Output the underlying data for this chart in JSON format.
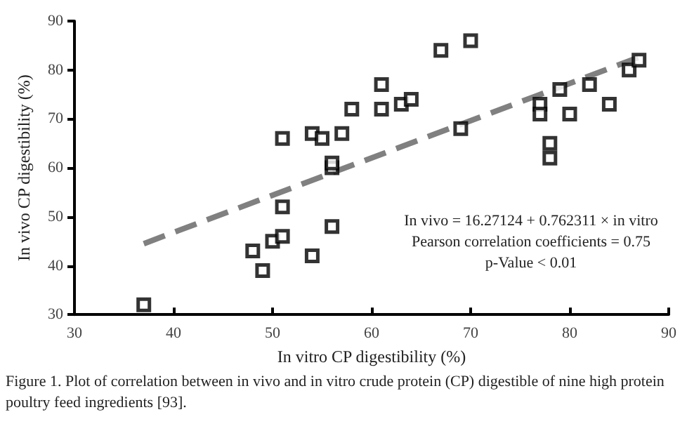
{
  "chart_data": {
    "type": "scatter",
    "xlabel": "In vitro CP digestibility (%)",
    "ylabel": "In vivo CP digestibility (%)",
    "xlim": [
      30,
      90
    ],
    "xticks": [
      30,
      40,
      50,
      60,
      70,
      80,
      90
    ],
    "ylim": [
      30,
      90
    ],
    "yticks": [
      30,
      40,
      50,
      60,
      70,
      80,
      90
    ],
    "grid": false,
    "series": [
      {
        "color": "#000000",
        "marker": "square",
        "x": [
          37,
          48,
          49,
          50,
          51,
          51,
          51,
          54,
          54,
          55,
          56,
          56,
          56,
          57,
          58,
          61,
          61,
          63,
          64,
          67,
          70,
          69,
          77,
          77,
          78,
          78,
          79,
          80,
          82,
          84,
          86,
          87
        ],
        "values": [
          32,
          43,
          39,
          45,
          46,
          52,
          66,
          42,
          67,
          66,
          60,
          61,
          48,
          67,
          72,
          77,
          72,
          73,
          74,
          84,
          86,
          68,
          73,
          71,
          65,
          62,
          76,
          71,
          77,
          73,
          80,
          82
        ]
      },
      {
        "type": "line",
        "color": "#808080",
        "line_style": "dashed",
        "marker": "none",
        "x": [
          37,
          87
        ],
        "values": [
          44.5,
          82.6
        ]
      }
    ],
    "annotations": [
      "In vivo = 16.27124 + 0.762311 × in vitro",
      "Pearson correlation coefficients = 0.75",
      "p-Value < 0.01",
      "Figure 1. Plot of correlation between in vivo and in vitro crude protein (CP) digestible of nine high protein poultry feed ingredients [93]."
    ]
  }
}
